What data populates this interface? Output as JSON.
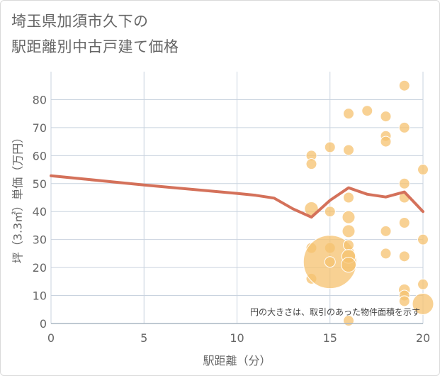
{
  "title_lines": [
    "埼玉県加須市久下の",
    "駅距離別中古戸建て価格"
  ],
  "chart_data": {
    "type": "scatter",
    "xlabel": "駅距離（分）",
    "ylabel": "坪（3.3㎡）単価（万円）",
    "xlim": [
      0,
      20
    ],
    "ylim": [
      0,
      90
    ],
    "x_ticks": [
      0,
      5,
      10,
      15,
      20
    ],
    "y_ticks": [
      0,
      10,
      20,
      30,
      40,
      50,
      60,
      70,
      80
    ],
    "grid": true,
    "annotation": "円の大きさは、取引のあった物件面積を示す",
    "colors": {
      "points": "#f5c16f",
      "line": "#d4715a",
      "grid": "#c9d3df",
      "axis": "#aab7c4"
    },
    "points": [
      {
        "x": 14,
        "y": 60,
        "size": 1
      },
      {
        "x": 14,
        "y": 57,
        "size": 1
      },
      {
        "x": 14,
        "y": 41,
        "size": 1.3
      },
      {
        "x": 14,
        "y": 27,
        "size": 1
      },
      {
        "x": 14,
        "y": 16,
        "size": 1
      },
      {
        "x": 15,
        "y": 63,
        "size": 1
      },
      {
        "x": 15,
        "y": 40,
        "size": 1
      },
      {
        "x": 15,
        "y": 27,
        "size": 1
      },
      {
        "x": 15,
        "y": 22,
        "size": 5
      },
      {
        "x": 15,
        "y": 22,
        "size": 1
      },
      {
        "x": 16,
        "y": 75,
        "size": 1
      },
      {
        "x": 16,
        "y": 62,
        "size": 1
      },
      {
        "x": 16,
        "y": 45,
        "size": 1
      },
      {
        "x": 16,
        "y": 38,
        "size": 1.2
      },
      {
        "x": 16,
        "y": 33,
        "size": 1.2
      },
      {
        "x": 16,
        "y": 28,
        "size": 1
      },
      {
        "x": 16,
        "y": 24,
        "size": 1.3
      },
      {
        "x": 16,
        "y": 21,
        "size": 1.4
      },
      {
        "x": 16,
        "y": 1,
        "size": 1
      },
      {
        "x": 17,
        "y": 76,
        "size": 1
      },
      {
        "x": 18,
        "y": 74,
        "size": 1
      },
      {
        "x": 18,
        "y": 67,
        "size": 1
      },
      {
        "x": 18,
        "y": 65,
        "size": 1
      },
      {
        "x": 18,
        "y": 33,
        "size": 1
      },
      {
        "x": 18,
        "y": 25,
        "size": 1
      },
      {
        "x": 19,
        "y": 85,
        "size": 1
      },
      {
        "x": 19,
        "y": 70,
        "size": 1
      },
      {
        "x": 19,
        "y": 50,
        "size": 1
      },
      {
        "x": 19,
        "y": 45,
        "size": 1
      },
      {
        "x": 19,
        "y": 36,
        "size": 1
      },
      {
        "x": 19,
        "y": 24,
        "size": 1
      },
      {
        "x": 19,
        "y": 12,
        "size": 1.1
      },
      {
        "x": 19,
        "y": 10,
        "size": 1
      },
      {
        "x": 19,
        "y": 8,
        "size": 1
      },
      {
        "x": 20,
        "y": 55,
        "size": 1
      },
      {
        "x": 20,
        "y": 30,
        "size": 1
      },
      {
        "x": 20,
        "y": 14,
        "size": 1
      },
      {
        "x": 20,
        "y": 7,
        "size": 2
      }
    ],
    "trend": [
      {
        "x": 0,
        "y": 52.8
      },
      {
        "x": 5,
        "y": 49.5
      },
      {
        "x": 10,
        "y": 46.5
      },
      {
        "x": 11,
        "y": 45.8
      },
      {
        "x": 12,
        "y": 44.8
      },
      {
        "x": 13,
        "y": 41
      },
      {
        "x": 14,
        "y": 38
      },
      {
        "x": 15,
        "y": 44
      },
      {
        "x": 16,
        "y": 48.5
      },
      {
        "x": 17,
        "y": 46.2
      },
      {
        "x": 18,
        "y": 45.2
      },
      {
        "x": 19,
        "y": 47
      },
      {
        "x": 20,
        "y": 40
      }
    ]
  }
}
